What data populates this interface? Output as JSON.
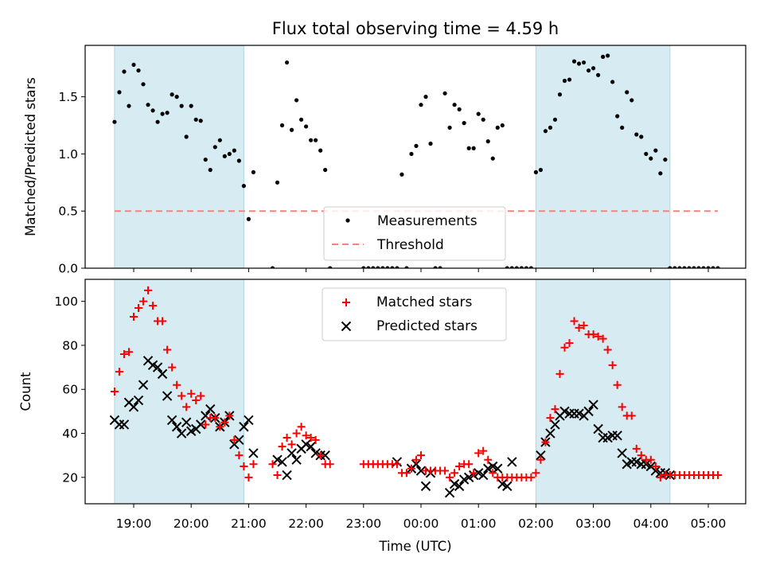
{
  "chart_data": [
    {
      "type": "scatter",
      "title": "Flux total observing time = 4.59 h",
      "ylabel": "Matched/Predicted stars",
      "ylim": [
        0,
        1.95
      ],
      "yticks": [
        "0.0",
        "0.5",
        "1.0",
        "1.5"
      ],
      "legend_position": "lower-center",
      "shaded_spans": [
        [
          "18:40",
          "20:55"
        ],
        [
          "02:00",
          "04:20"
        ]
      ],
      "shade_color": "#add8e6",
      "series": [
        {
          "name": "Measurements",
          "kind": "scatter",
          "color": "#000000",
          "x": [
            "18:40",
            "18:45",
            "18:50",
            "18:55",
            "19:00",
            "19:05",
            "19:10",
            "19:15",
            "19:20",
            "19:25",
            "19:30",
            "19:35",
            "19:40",
            "19:45",
            "19:50",
            "19:55",
            "20:00",
            "20:05",
            "20:10",
            "20:15",
            "20:20",
            "20:25",
            "20:30",
            "20:35",
            "20:40",
            "20:45",
            "20:50",
            "20:55",
            "21:00",
            "21:05",
            "21:25",
            "21:30",
            "21:35",
            "21:40",
            "21:45",
            "21:50",
            "21:55",
            "22:00",
            "22:05",
            "22:10",
            "22:15",
            "22:20",
            "22:25",
            "23:00",
            "23:05",
            "23:10",
            "23:15",
            "23:20",
            "23:25",
            "23:30",
            "23:35",
            "23:40",
            "23:45",
            "23:50",
            "23:55",
            "00:00",
            "00:05",
            "00:10",
            "00:15",
            "00:20",
            "00:25",
            "00:30",
            "00:35",
            "00:40",
            "00:45",
            "00:50",
            "00:55",
            "01:00",
            "01:05",
            "01:10",
            "01:15",
            "01:20",
            "01:25",
            "01:30",
            "01:35",
            "01:40",
            "01:45",
            "01:50",
            "01:55",
            "02:00",
            "02:05",
            "02:10",
            "02:15",
            "02:20",
            "02:25",
            "02:30",
            "02:35",
            "02:40",
            "02:45",
            "02:50",
            "02:55",
            "03:00",
            "03:05",
            "03:10",
            "03:15",
            "03:20",
            "03:25",
            "03:30",
            "03:35",
            "03:40",
            "03:45",
            "03:50",
            "03:55",
            "04:00",
            "04:05",
            "04:10",
            "04:15",
            "04:20",
            "04:25",
            "04:30",
            "04:35",
            "04:40",
            "04:45",
            "04:50",
            "04:55",
            "05:00",
            "05:05",
            "05:10"
          ],
          "y": [
            1.28,
            1.54,
            1.72,
            1.42,
            1.78,
            1.73,
            1.61,
            1.43,
            1.38,
            1.28,
            1.35,
            1.36,
            1.52,
            1.5,
            1.42,
            1.15,
            1.42,
            1.3,
            1.29,
            0.95,
            0.86,
            1.06,
            1.12,
            0.98,
            1.0,
            1.03,
            0.94,
            0.72,
            0.43,
            0.84,
            0.0,
            0.75,
            1.25,
            1.8,
            1.21,
            1.47,
            1.3,
            1.24,
            1.12,
            1.12,
            1.03,
            0.86,
            0.0,
            0.0,
            0.0,
            0.0,
            0.0,
            0.0,
            0.0,
            0.0,
            0.0,
            0.82,
            0.0,
            1.0,
            1.07,
            1.43,
            1.5,
            1.09,
            0.0,
            0.0,
            1.53,
            1.23,
            1.43,
            1.39,
            1.27,
            1.05,
            1.05,
            1.35,
            1.3,
            1.11,
            0.96,
            1.23,
            1.25,
            0.0,
            0.0,
            0.0,
            0.0,
            0.0,
            0.0,
            0.84,
            0.86,
            1.2,
            1.23,
            1.3,
            1.52,
            1.64,
            1.65,
            1.81,
            1.79,
            1.8,
            1.73,
            1.75,
            1.69,
            1.85,
            1.86,
            1.63,
            1.33,
            1.23,
            1.54,
            1.47,
            1.17,
            1.15,
            1.0,
            0.96,
            1.03,
            0.83,
            0.95,
            0.0,
            0.0,
            0.0,
            0.0,
            0.0,
            0.0,
            0.0,
            0.0,
            0.0,
            0.0,
            0.0
          ]
        },
        {
          "name": "Threshold",
          "kind": "line",
          "color": "#ff7f7f",
          "value": 0.5,
          "x_range": [
            "18:40",
            "05:10"
          ]
        }
      ]
    },
    {
      "type": "scatter",
      "xlabel": "Time (UTC)",
      "ylabel": "Count",
      "ylim": [
        8,
        110
      ],
      "yticks": [
        "20",
        "40",
        "60",
        "80",
        "100"
      ],
      "xticks": [
        "19:00",
        "20:00",
        "21:00",
        "22:00",
        "23:00",
        "00:00",
        "01:00",
        "02:00",
        "03:00",
        "04:00",
        "05:00"
      ],
      "xlim": [
        "18:10",
        "05:45"
      ],
      "legend_position": "upper-center",
      "shaded_spans": [
        [
          "18:40",
          "20:55"
        ],
        [
          "02:00",
          "04:20"
        ]
      ],
      "shade_color": "#add8e6",
      "series": [
        {
          "name": "Matched stars",
          "marker": "+",
          "color": "#ff0000",
          "x": [
            "18:40",
            "18:45",
            "18:50",
            "18:55",
            "19:00",
            "19:05",
            "19:10",
            "19:15",
            "19:20",
            "19:25",
            "19:30",
            "19:35",
            "19:40",
            "19:45",
            "19:50",
            "19:55",
            "20:00",
            "20:05",
            "20:10",
            "20:15",
            "20:20",
            "20:25",
            "20:30",
            "20:35",
            "20:40",
            "20:45",
            "20:50",
            "20:55",
            "21:00",
            "21:05",
            "21:25",
            "21:30",
            "21:35",
            "21:40",
            "21:45",
            "21:50",
            "21:55",
            "22:00",
            "22:05",
            "22:10",
            "22:15",
            "22:20",
            "22:25",
            "23:00",
            "23:05",
            "23:10",
            "23:15",
            "23:20",
            "23:25",
            "23:30",
            "23:35",
            "23:40",
            "23:45",
            "23:50",
            "23:55",
            "00:00",
            "00:05",
            "00:10",
            "00:15",
            "00:20",
            "00:25",
            "00:30",
            "00:35",
            "00:40",
            "00:45",
            "00:50",
            "00:55",
            "01:00",
            "01:05",
            "01:10",
            "01:15",
            "01:20",
            "01:25",
            "01:30",
            "01:35",
            "01:40",
            "01:45",
            "01:50",
            "01:55",
            "02:00",
            "02:05",
            "02:10",
            "02:15",
            "02:20",
            "02:25",
            "02:30",
            "02:35",
            "02:40",
            "02:45",
            "02:50",
            "02:55",
            "03:00",
            "03:05",
            "03:10",
            "03:15",
            "03:20",
            "03:25",
            "03:30",
            "03:35",
            "03:40",
            "03:45",
            "03:50",
            "03:55",
            "04:00",
            "04:05",
            "04:10",
            "04:15",
            "04:20",
            "04:25",
            "04:30",
            "04:35",
            "04:40",
            "04:45",
            "04:50",
            "04:55",
            "05:00",
            "05:05",
            "05:10"
          ],
          "y": [
            59,
            68,
            76,
            77,
            93,
            97,
            100,
            105,
            98,
            91,
            91,
            78,
            70,
            62,
            57,
            52,
            58,
            55,
            57,
            44,
            47,
            47,
            43,
            45,
            48,
            37,
            30,
            25,
            20,
            26,
            26,
            21,
            34,
            38,
            35,
            40,
            43,
            39,
            38,
            37,
            30,
            26,
            26,
            26,
            26,
            26,
            26,
            26,
            26,
            26,
            26,
            22,
            22,
            24,
            28,
            30,
            23,
            23,
            23,
            23,
            23,
            20,
            22,
            25,
            26,
            26,
            22,
            31,
            32,
            28,
            22,
            20,
            20,
            20,
            20,
            20,
            20,
            20,
            20,
            22,
            28,
            36,
            47,
            51,
            67,
            79,
            81,
            91,
            88,
            89,
            85,
            85,
            84,
            83,
            78,
            71,
            62,
            52,
            48,
            48,
            33,
            30,
            28,
            28,
            25,
            20,
            21,
            21,
            21,
            21,
            21,
            21,
            21,
            21,
            21,
            21,
            21,
            21
          ]
        },
        {
          "name": "Predicted stars",
          "marker": "x",
          "color": "#000000",
          "x": [
            "18:40",
            "18:45",
            "18:50",
            "18:55",
            "19:00",
            "19:05",
            "19:10",
            "19:15",
            "19:20",
            "19:25",
            "19:30",
            "19:35",
            "19:40",
            "19:45",
            "19:50",
            "19:55",
            "20:00",
            "20:05",
            "20:10",
            "20:15",
            "20:20",
            "20:25",
            "20:30",
            "20:35",
            "20:40",
            "20:45",
            "20:50",
            "20:55",
            "21:00",
            "21:05",
            "21:30",
            "21:35",
            "21:40",
            "21:45",
            "21:50",
            "21:55",
            "22:00",
            "22:05",
            "22:10",
            "22:15",
            "22:20",
            "23:35",
            "23:50",
            "23:55",
            "00:00",
            "00:05",
            "00:10",
            "00:30",
            "00:35",
            "00:40",
            "00:45",
            "00:50",
            "00:55",
            "01:00",
            "01:05",
            "01:10",
            "01:15",
            "01:20",
            "01:25",
            "01:30",
            "01:35",
            "02:05",
            "02:10",
            "02:15",
            "02:20",
            "02:25",
            "02:30",
            "02:35",
            "02:40",
            "02:45",
            "02:50",
            "02:55",
            "03:00",
            "03:05",
            "03:10",
            "03:15",
            "03:20",
            "03:25",
            "03:30",
            "03:35",
            "03:40",
            "03:45",
            "03:50",
            "03:55",
            "04:00",
            "04:05",
            "04:10",
            "04:15",
            "04:20"
          ],
          "y": [
            46,
            44,
            44,
            54,
            52,
            55,
            62,
            73,
            71,
            70,
            67,
            57,
            46,
            43,
            40,
            45,
            41,
            42,
            44,
            48,
            51,
            47,
            43,
            45,
            48,
            35,
            37,
            43,
            46,
            31,
            28,
            27,
            21,
            31,
            28,
            33,
            35,
            34,
            31,
            30,
            30,
            27,
            24,
            26,
            23,
            16,
            22,
            13,
            17,
            16,
            19,
            20,
            21,
            22,
            21,
            24,
            25,
            24,
            17,
            16,
            27,
            30,
            36,
            40,
            44,
            48,
            50,
            49,
            49,
            49,
            48,
            50,
            53,
            42,
            38,
            38,
            39,
            39,
            31,
            26,
            27,
            27,
            26,
            26,
            25,
            23,
            22,
            22,
            21
          ]
        }
      ]
    }
  ]
}
